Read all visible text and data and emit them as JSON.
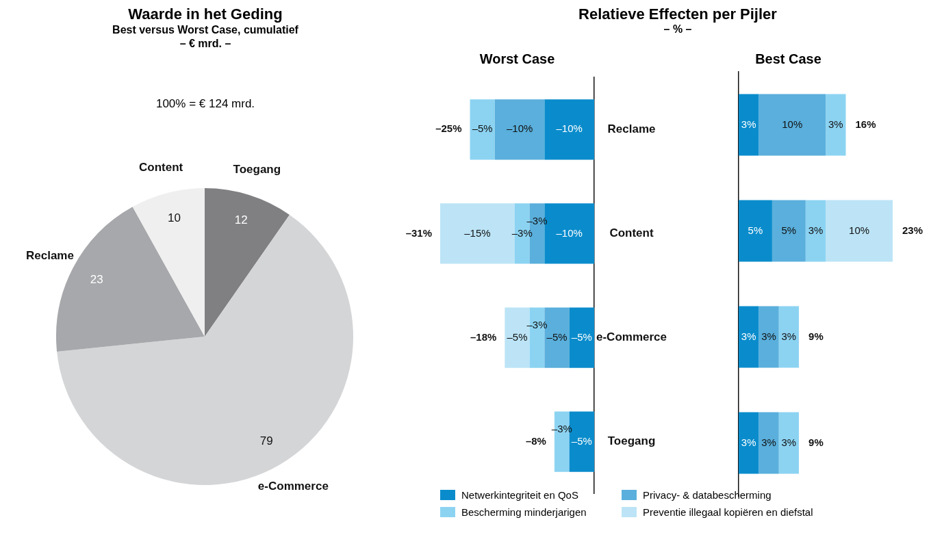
{
  "chart_data": [
    {
      "type": "pie",
      "title": "Waarde in het Geding",
      "subtitle": "Best versus Worst Case, cumulatief\n– € mrd. –",
      "annotations": [
        "100% = € 124 mrd."
      ],
      "categories": [
        "Toegang",
        "e-Commerce",
        "Reclame",
        "Content"
      ],
      "values": [
        12,
        79,
        23,
        10
      ],
      "colors": [
        "#808083",
        "#d4d5d7",
        "#a7a8ab",
        "#efefef"
      ],
      "data_labels": true,
      "legend": false
    },
    {
      "type": "other",
      "title": "Relatieve Effecten per Pijler",
      "subtitle": "– % –"
    },
    {
      "type": "bar",
      "title": "Worst Case",
      "orientation": "horizontal",
      "stacked": true,
      "categories": [
        "Reclame",
        "Content",
        "e-Commerce",
        "Toegang"
      ],
      "legend": "bottom",
      "grid": false,
      "series": [
        {
          "name": "Netwerkintegriteit en QoS",
          "color": "#0a8ccc",
          "values": [
            -10,
            -10,
            -5,
            -5
          ],
          "value_labels": [
            "–10%",
            "–10%",
            "–5%",
            "–5%"
          ]
        },
        {
          "name": "Privacy- & databescherming",
          "color": "#5aafdc",
          "values": [
            -10,
            -3,
            -5,
            null
          ],
          "value_labels": [
            "–10%",
            "–3%",
            "–5%",
            null
          ]
        },
        {
          "name": "Bescherming minderjarigen",
          "color": "#8cd3f2",
          "values": [
            -5,
            -3,
            -3,
            -3
          ],
          "value_labels": [
            "–5%",
            "–3%",
            "–3%",
            "–3%"
          ]
        },
        {
          "name": "Preventie illegaal kopiëren en diefstal",
          "color": "#bce4f6",
          "values": [
            null,
            -15,
            -5,
            null
          ],
          "value_labels": [
            null,
            "–15%",
            "–5%",
            null
          ]
        }
      ],
      "totals": [
        "–25%",
        "–31%",
        "–18%",
        "–8%"
      ]
    },
    {
      "type": "bar",
      "title": "Best Case",
      "orientation": "horizontal",
      "stacked": true,
      "categories": [
        null,
        null,
        null,
        null
      ],
      "legend": false,
      "grid": false,
      "series": [
        {
          "color": "#0a8ccc",
          "values": [
            3,
            5,
            3,
            3
          ],
          "value_labels": [
            "3%",
            "5%",
            "3%",
            "3%"
          ]
        },
        {
          "color": "#5aafdc",
          "values": [
            10,
            5,
            3,
            3
          ],
          "value_labels": [
            "10%",
            "5%",
            "3%",
            "3%"
          ]
        },
        {
          "color": "#8cd3f2",
          "values": [
            3,
            3,
            3,
            3
          ],
          "value_labels": [
            "3%",
            "3%",
            "3%",
            "3%"
          ]
        },
        {
          "color": "#bce4f6",
          "values": [
            null,
            10,
            null,
            null
          ],
          "value_labels": [
            null,
            "10%",
            null,
            null
          ]
        }
      ],
      "totals": [
        "16%",
        "23%",
        "9%",
        "9%"
      ]
    }
  ]
}
